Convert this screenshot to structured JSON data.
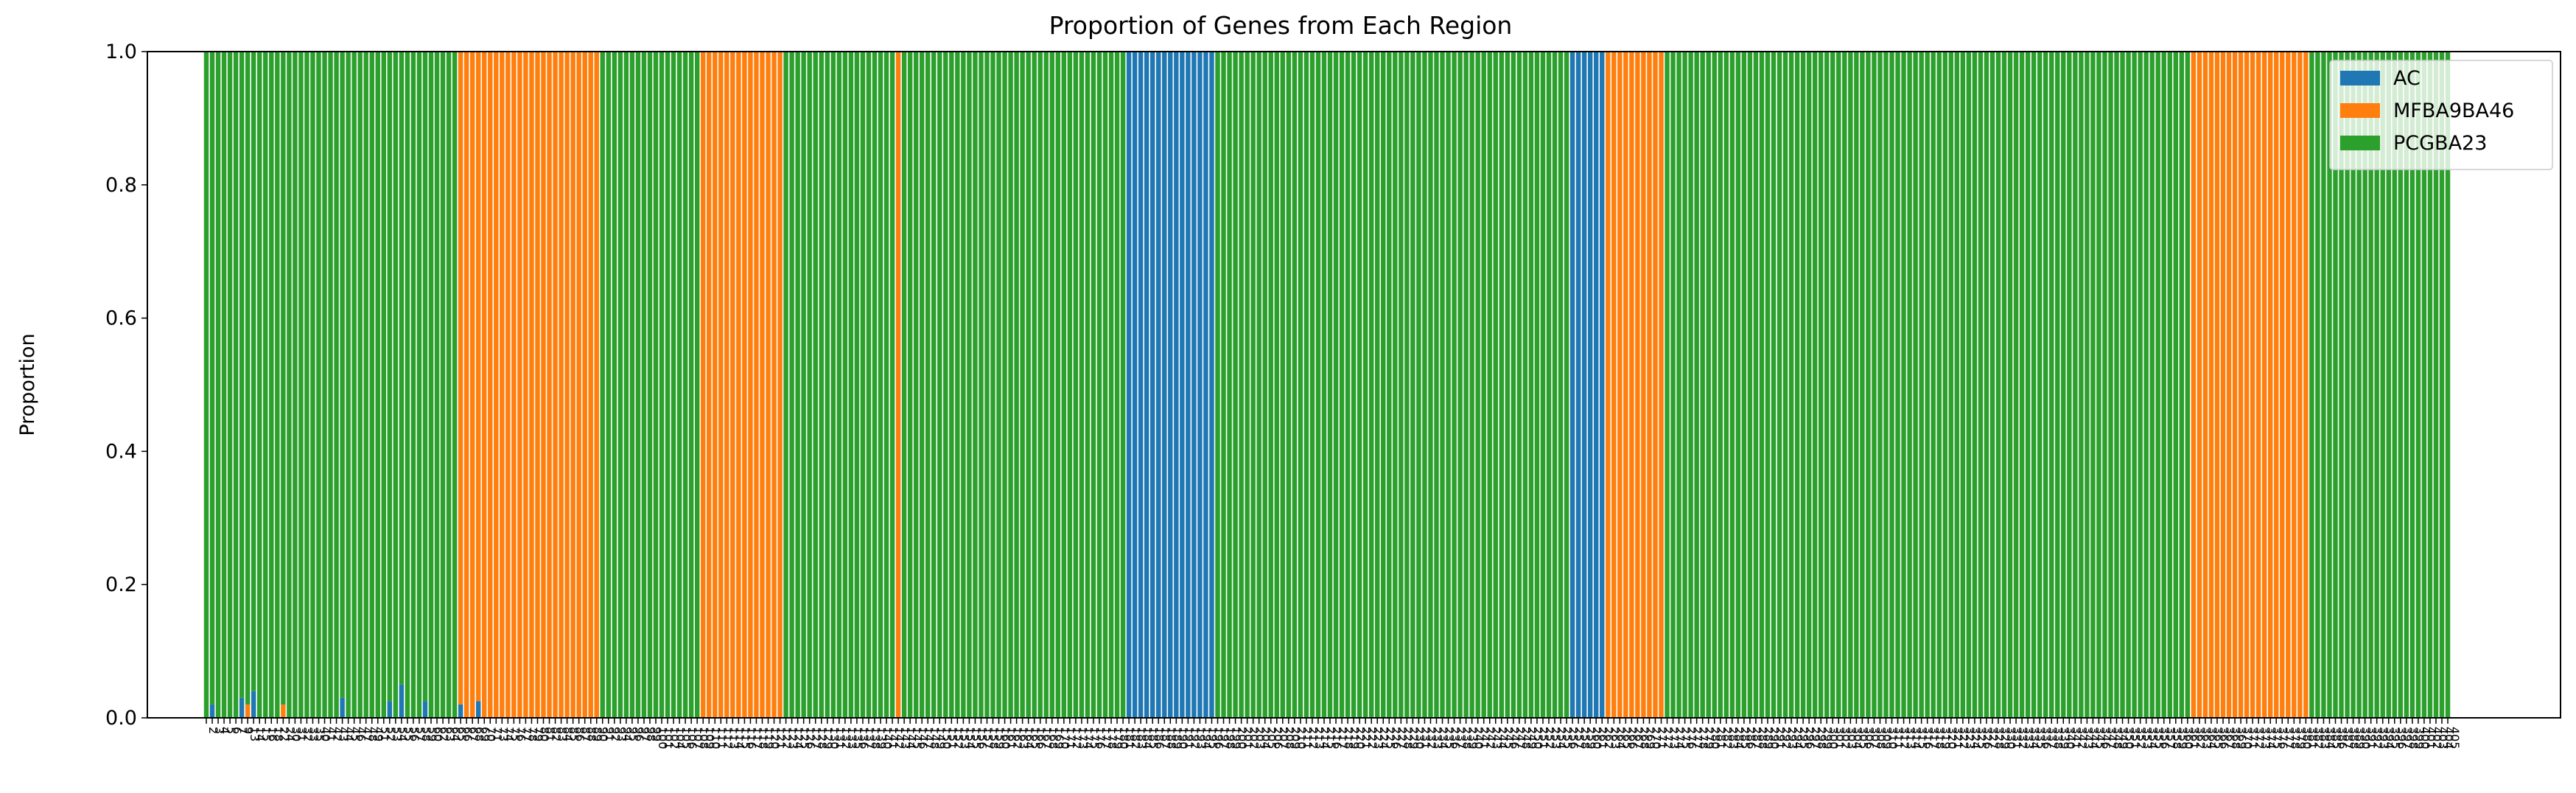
{
  "colors": {
    "AC": "#1f77b4",
    "MFBA9BA46": "#ff7f0e",
    "PCGBA23": "#2ca02c"
  },
  "chart_data": {
    "type": "bar",
    "stacked": true,
    "title": "Proportion of Genes from Each Region",
    "xlabel": "",
    "ylabel": "Proportion",
    "ylim": [
      0,
      1
    ],
    "yticks": [
      "0.0",
      "0.2",
      "0.4",
      "0.6",
      "0.8",
      "1.0"
    ],
    "legend_position": "top-right",
    "grid": false,
    "series": [
      {
        "name": "AC",
        "color": "#1f77b4"
      },
      {
        "name": "MFBA9BA46",
        "color": "#ff7f0e"
      },
      {
        "name": "PCGBA23",
        "color": "#2ca02c"
      }
    ],
    "categories": [
      "2",
      "3",
      "4",
      "5",
      "6",
      "7",
      "9",
      "13",
      "14",
      "15",
      "16",
      "18",
      "22",
      "24",
      "30",
      "31",
      "32",
      "33",
      "35",
      "40",
      "41",
      "42",
      "43",
      "44",
      "45",
      "46",
      "47",
      "48",
      "49",
      "51",
      "52",
      "53",
      "54",
      "55",
      "56",
      "57",
      "58",
      "59",
      "60",
      "62",
      "63",
      "64",
      "65",
      "66",
      "67",
      "68",
      "69",
      "70",
      "71",
      "73",
      "74",
      "75",
      "76",
      "77",
      "78",
      "79",
      "80",
      "81",
      "82",
      "83",
      "84",
      "85",
      "86",
      "87",
      "88",
      "89",
      "90",
      "91",
      "92",
      "93",
      "94",
      "95",
      "96",
      "97",
      "98",
      "99",
      "100",
      "101",
      "102",
      "104",
      "105",
      "106",
      "107",
      "108",
      "109",
      "110",
      "111",
      "112",
      "113",
      "114",
      "115",
      "116",
      "117",
      "118",
      "119",
      "120",
      "121",
      "122",
      "123",
      "124",
      "125",
      "126",
      "127",
      "128",
      "129",
      "130",
      "131",
      "132",
      "133",
      "135",
      "136",
      "137",
      "138",
      "139",
      "140",
      "141",
      "142",
      "143",
      "144",
      "145",
      "146",
      "147",
      "148",
      "149",
      "150",
      "151",
      "152",
      "153",
      "154",
      "155",
      "156",
      "157",
      "158",
      "159",
      "160",
      "161",
      "162",
      "163",
      "164",
      "165",
      "166",
      "167",
      "168",
      "169",
      "170",
      "171",
      "172",
      "173",
      "174",
      "175",
      "176",
      "177",
      "178",
      "179",
      "180",
      "181",
      "182",
      "183",
      "184",
      "185",
      "186",
      "187",
      "188",
      "189",
      "190",
      "191",
      "192",
      "193",
      "194",
      "195",
      "196",
      "197",
      "198",
      "199",
      "200",
      "201",
      "202",
      "203",
      "204",
      "205",
      "206",
      "207",
      "208",
      "209",
      "210",
      "211",
      "212",
      "213",
      "214",
      "215",
      "216",
      "217",
      "218",
      "219",
      "220",
      "221",
      "222",
      "223",
      "224",
      "225",
      "226",
      "227",
      "228",
      "229",
      "230",
      "231",
      "232",
      "233",
      "234",
      "235",
      "236",
      "237",
      "238",
      "239",
      "240",
      "241",
      "242",
      "243",
      "244",
      "245",
      "246",
      "247",
      "248",
      "249",
      "250",
      "251",
      "252",
      "253",
      "254",
      "255",
      "256",
      "257",
      "258",
      "259",
      "260",
      "261",
      "262",
      "263",
      "264",
      "265",
      "266",
      "267",
      "268",
      "269",
      "270",
      "271",
      "272",
      "273",
      "274",
      "275",
      "276",
      "277",
      "278",
      "279",
      "280",
      "281",
      "282",
      "283",
      "284",
      "285",
      "286",
      "287",
      "288",
      "289",
      "290",
      "291",
      "292",
      "293",
      "294",
      "295",
      "296",
      "297",
      "298",
      "299",
      "300",
      "301",
      "302",
      "303",
      "304",
      "305",
      "306",
      "307",
      "308",
      "309",
      "310",
      "311",
      "312",
      "313",
      "314",
      "315",
      "316",
      "317",
      "318",
      "319",
      "320",
      "321",
      "322",
      "323",
      "324",
      "325",
      "326",
      "327",
      "328",
      "329",
      "330",
      "331",
      "332",
      "333",
      "334",
      "335",
      "336",
      "337",
      "338",
      "339",
      "340",
      "341",
      "342",
      "343",
      "344",
      "345",
      "346",
      "347",
      "348",
      "349",
      "350",
      "351",
      "352",
      "353",
      "354",
      "355",
      "356",
      "357",
      "358",
      "359",
      "360",
      "361",
      "362",
      "363",
      "364",
      "365",
      "366",
      "367",
      "368",
      "369",
      "370",
      "371",
      "372",
      "373",
      "374",
      "375",
      "376",
      "377",
      "378",
      "379",
      "380",
      "381",
      "382",
      "383",
      "384",
      "385",
      "386",
      "387",
      "388",
      "389",
      "390",
      "391",
      "392",
      "393",
      "394",
      "395",
      "396",
      "397",
      "398",
      "399",
      "400",
      "401",
      "402",
      "403",
      "404",
      "405"
    ],
    "dominant": "GGGGGGGGGGGGGGGGGGGGGGGGGGGGGGGGGGGGGGGGGGGOOOOOOOOOOOOOOOOOOOOOOOOGGGGGGGGGGGGGGGGGOOOOOOOOOOOOOOGGGGGGGGGGGGGGGGGGGOGGGGGGGGGGGGGGGGGGGGGGGGGGGGGGGGGGGGGGBBBBBBBBBBBBBBBGGGGGGGGGGGGGGGGGGGGGGGGGGGGGGGGGGGGGGGGGGGGGGGGGGGGGGGGGGGGBBBBBBOOOOOOOOOOGGGGGGGGGGGGGGGGGGGGGGGGGGGGGGGGGGGGGGGGGGGGGGGGGGGGGGGGGGGGGGGGGGGGGGGGGGGGGGGGGGGGGGGGGOOOOOOOOOOOOOOOOOOOOGGGGGGGGGGGGGGGGGGGGGGGGGGGGGGGGGGGGGGGGGGGGGGGGGGGGGGGGGGGGGGGGGGGGGGGGGGGGGGGGGGGGGGGGGGGGGGGGGGGGGGGGGGGGGGGGGGGGGGGGGGGGGGGGGGGGGGGGGGGGGGGGGGGGGGGGGGGGGGGG",
    "minor": {
      "1": [
        "B",
        0.02
      ],
      "6": [
        "B",
        0.03
      ],
      "7": [
        "O",
        0.02
      ],
      "8": [
        "B",
        0.04
      ],
      "13": [
        "O",
        0.02
      ],
      "23": [
        "B",
        0.03
      ],
      "31": [
        "B",
        0.025
      ],
      "33": [
        "B",
        0.05
      ],
      "37": [
        "B",
        0.025
      ],
      "43": [
        "B",
        0.02
      ],
      "46": [
        "B",
        0.025
      ]
    }
  }
}
